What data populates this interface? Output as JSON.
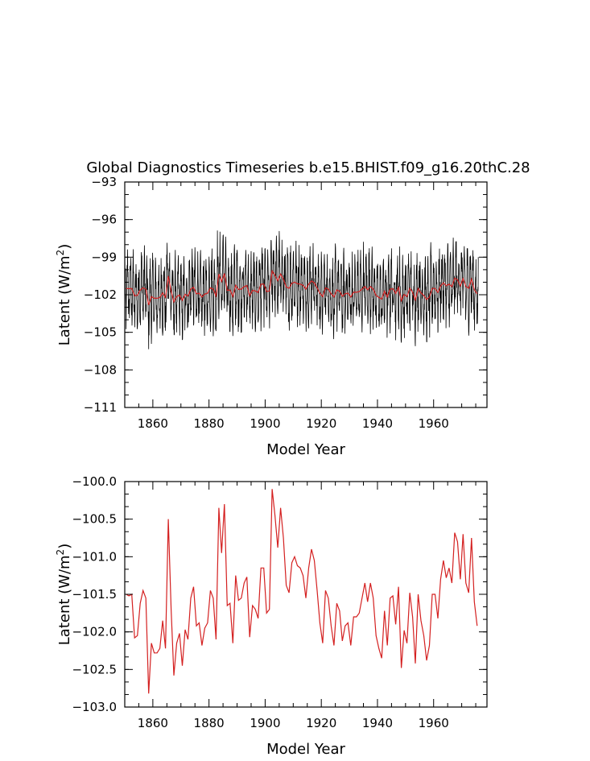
{
  "chart_data": [
    {
      "type": "line",
      "title": "Global Diagnostics Timeseries b.e15.BHIST.f09_g16.20thC.28",
      "xlabel": "Model Year",
      "ylabel": "Latent (W/m²)",
      "ylabel_main": "Latent (W/m",
      "ylabel_sup": "2",
      "ylabel_end": ")",
      "xlim": [
        1850,
        1979
      ],
      "ylim": [
        -111,
        -93
      ],
      "xticks": [
        1860,
        1880,
        1900,
        1920,
        1940,
        1960
      ],
      "yticks": [
        -111,
        -108,
        -105,
        -102,
        -99,
        -96,
        -93
      ],
      "ytick_labels": [
        "−111",
        "−108",
        "−105",
        "−102",
        "−99",
        "−96",
        "−93"
      ],
      "xtick_labels": [
        "1860",
        "1880",
        "1900",
        "1920",
        "1940",
        "1960"
      ],
      "series": [
        {
          "color": "#000000",
          "note_values": "monthly",
          "start": 1850,
          "step": 0.0833333,
          "amplitude_ref": "annual",
          "seasonal_amplitude": 2.2
        },
        {
          "color": "#d42020",
          "ref": "annual"
        }
      ]
    },
    {
      "type": "line",
      "xlabel": "Model Year",
      "ylabel": "Latent (W/m²)",
      "ylabel_main": "Latent (W/m",
      "ylabel_sup": "2",
      "ylabel_end": ")",
      "xlim": [
        1850,
        1979
      ],
      "ylim": [
        -103.0,
        -100.0
      ],
      "xticks": [
        1860,
        1880,
        1900,
        1920,
        1940,
        1960
      ],
      "yticks": [
        -103.0,
        -102.5,
        -102.0,
        -101.5,
        -101.0,
        -100.5,
        -100.0
      ],
      "ytick_labels": [
        "−103.0",
        "−102.5",
        "−102.0",
        "−101.5",
        "−101.0",
        "−100.5",
        "−100.0"
      ],
      "xtick_labels": [
        "1860",
        "1880",
        "1900",
        "1920",
        "1940",
        "1960"
      ],
      "series": [
        {
          "color": "#d42020",
          "x_start": 1850,
          "values": [
            -101.5,
            -101.52,
            -101.5,
            -102.08,
            -102.05,
            -101.62,
            -101.45,
            -101.55,
            -102.82,
            -102.15,
            -102.28,
            -102.28,
            -102.22,
            -101.85,
            -102.22,
            -100.5,
            -101.7,
            -102.58,
            -102.15,
            -102.02,
            -102.45,
            -101.97,
            -102.1,
            -101.55,
            -101.4,
            -101.92,
            -101.88,
            -102.18,
            -101.95,
            -101.88,
            -101.45,
            -101.55,
            -102.1,
            -100.35,
            -100.95,
            -100.3,
            -101.65,
            -101.62,
            -102.15,
            -101.25,
            -101.58,
            -101.55,
            -101.35,
            -101.27,
            -102.07,
            -101.65,
            -101.7,
            -101.82,
            -101.15,
            -101.15,
            -101.75,
            -101.7,
            -100.1,
            -100.45,
            -100.88,
            -100.35,
            -100.75,
            -101.38,
            -101.48,
            -101.08,
            -101.0,
            -101.12,
            -101.15,
            -101.25,
            -101.55,
            -101.15,
            -100.9,
            -101.05,
            -101.45,
            -101.88,
            -102.15,
            -101.45,
            -101.55,
            -101.92,
            -102.18,
            -101.62,
            -101.72,
            -102.12,
            -101.92,
            -101.88,
            -102.18,
            -101.8,
            -101.8,
            -101.75,
            -101.55,
            -101.35,
            -101.6,
            -101.35,
            -101.55,
            -102.05,
            -102.22,
            -102.35,
            -101.72,
            -102.18,
            -101.55,
            -101.52,
            -101.9,
            -101.4,
            -102.48,
            -101.98,
            -102.15,
            -101.48,
            -101.8,
            -102.42,
            -101.5,
            -101.85,
            -102.05,
            -102.38,
            -102.18,
            -101.5,
            -101.5,
            -101.82,
            -101.3,
            -101.05,
            -101.28,
            -101.15,
            -101.35,
            -100.68,
            -100.8,
            -101.3,
            -100.7,
            -101.35,
            -101.48,
            -100.75,
            -101.6,
            -101.92
          ]
        }
      ]
    }
  ]
}
